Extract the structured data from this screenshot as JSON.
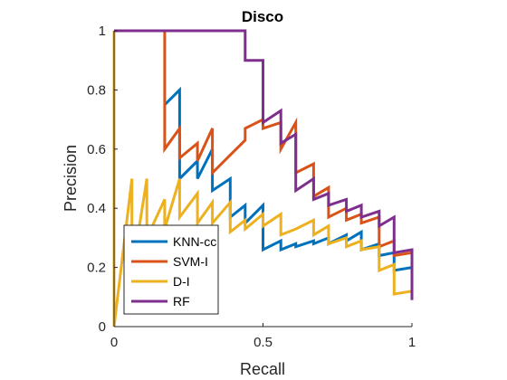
{
  "chart_data": {
    "type": "line",
    "title": "Disco",
    "xlabel": "Recall",
    "ylabel": "Precision",
    "xlim": [
      0,
      1
    ],
    "ylim": [
      0,
      1
    ],
    "xticks": [
      0,
      0.5,
      1
    ],
    "xtick_labels": [
      "0",
      "0.5",
      "1"
    ],
    "yticks": [
      0,
      0.2,
      0.4,
      0.6,
      0.8,
      1
    ],
    "ytick_labels": [
      "0",
      "0.2",
      "0.4",
      "0.6",
      "0.8",
      "1"
    ],
    "grid": false,
    "legend_position": "bottom-left",
    "series": [
      {
        "name": "KNN-cc",
        "color": "#0072BD",
        "x": [
          0.17,
          0.17,
          0.22,
          0.22,
          0.28,
          0.28,
          0.33,
          0.33,
          0.39,
          0.39,
          0.44,
          0.44,
          0.5,
          0.5,
          0.56,
          0.56,
          0.61,
          0.61,
          0.67,
          0.67,
          0.72,
          0.72,
          0.78,
          0.78,
          0.83,
          0.83,
          0.89,
          0.89,
          0.94,
          0.94,
          1.0,
          1.0
        ],
        "y": [
          0.75,
          0.75,
          0.8,
          0.5,
          0.56,
          0.5,
          0.6,
          0.46,
          0.5,
          0.37,
          0.41,
          0.35,
          0.41,
          0.26,
          0.29,
          0.26,
          0.28,
          0.27,
          0.29,
          0.28,
          0.3,
          0.28,
          0.31,
          0.29,
          0.32,
          0.26,
          0.28,
          0.24,
          0.25,
          0.19,
          0.2,
          0.18
        ]
      },
      {
        "name": "SVM-I",
        "color": "#D95319",
        "x": [
          0.17,
          0.17,
          0.22,
          0.22,
          0.28,
          0.28,
          0.33,
          0.33,
          0.39,
          0.39,
          0.44,
          0.44,
          0.5,
          0.5,
          0.56,
          0.56,
          0.61,
          0.61,
          0.67,
          0.67,
          0.72,
          0.72,
          0.78,
          0.78,
          0.83,
          0.83,
          0.89,
          0.89,
          0.94,
          0.94,
          1.0,
          1.0
        ],
        "y": [
          1.0,
          0.6,
          0.67,
          0.57,
          0.62,
          0.56,
          0.67,
          0.52,
          0.58,
          0.58,
          0.63,
          0.67,
          0.7,
          0.67,
          0.69,
          0.6,
          0.69,
          0.52,
          0.55,
          0.44,
          0.47,
          0.37,
          0.4,
          0.36,
          0.38,
          0.35,
          0.37,
          0.27,
          0.29,
          0.24,
          0.25,
          0.23
        ]
      },
      {
        "name": "D-I",
        "color": "#EDB120",
        "x": [
          0.0,
          0.0,
          0.0,
          0.06,
          0.06,
          0.11,
          0.11,
          0.17,
          0.17,
          0.22,
          0.22,
          0.28,
          0.28,
          0.33,
          0.33,
          0.39,
          0.39,
          0.44,
          0.44,
          0.5,
          0.5,
          0.56,
          0.56,
          0.61,
          0.61,
          0.67,
          0.67,
          0.72,
          0.72,
          0.78,
          0.78,
          0.83,
          0.83,
          0.89,
          0.89,
          0.94,
          0.94,
          1.0
        ],
        "y": [
          0.0,
          1.0,
          0.0,
          0.5,
          0.18,
          0.5,
          0.3,
          0.43,
          0.33,
          0.5,
          0.37,
          0.45,
          0.35,
          0.42,
          0.35,
          0.42,
          0.32,
          0.36,
          0.33,
          0.38,
          0.34,
          0.38,
          0.31,
          0.33,
          0.33,
          0.36,
          0.31,
          0.34,
          0.28,
          0.3,
          0.27,
          0.29,
          0.26,
          0.27,
          0.19,
          0.21,
          0.11,
          0.12
        ]
      },
      {
        "name": "RF",
        "color": "#7E2F8E",
        "x": [
          0.0,
          0.44,
          0.44,
          0.5,
          0.5,
          0.56,
          0.56,
          0.61,
          0.61,
          0.67,
          0.67,
          0.72,
          0.72,
          0.78,
          0.78,
          0.83,
          0.83,
          0.89,
          0.89,
          0.94,
          0.94,
          1.0,
          1.0
        ],
        "y": [
          1.0,
          1.0,
          0.9,
          0.9,
          0.69,
          0.73,
          0.62,
          0.65,
          0.46,
          0.5,
          0.43,
          0.45,
          0.41,
          0.43,
          0.39,
          0.41,
          0.37,
          0.39,
          0.34,
          0.37,
          0.25,
          0.26,
          0.09
        ]
      }
    ]
  }
}
